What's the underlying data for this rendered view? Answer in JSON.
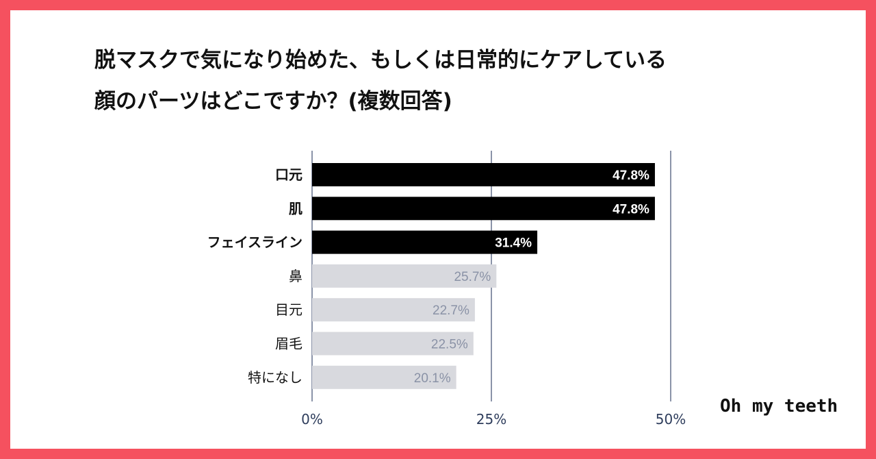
{
  "title_lines": [
    "脱マスクで気になり始めた、もしくは日常的にケアしている",
    "顔のパーツはどこですか？(複数回答)"
  ],
  "brand": "Oh my teeth",
  "colors": {
    "frame": "#f5515f",
    "highlight_bar": "#000000",
    "muted_bar": "#d8d9de",
    "highlight_label": "#ffffff",
    "muted_label": "#8a92a6",
    "gridline": "#8a93a8",
    "tick_label": "#2e3d5c"
  },
  "chart_data": {
    "type": "bar",
    "orientation": "horizontal",
    "categories": [
      "口元",
      "肌",
      "フェイスライン",
      "鼻",
      "目元",
      "眉毛",
      "特になし"
    ],
    "values": [
      47.8,
      47.8,
      31.4,
      25.7,
      22.7,
      22.5,
      20.1
    ],
    "value_labels": [
      "47.8%",
      "47.8%",
      "31.4%",
      "25.7%",
      "22.7%",
      "22.5%",
      "20.1%"
    ],
    "highlighted": [
      true,
      true,
      true,
      false,
      false,
      false,
      false
    ],
    "xlim": [
      0,
      50
    ],
    "xticks": [
      0,
      25,
      50
    ],
    "xtick_labels": [
      "0%",
      "25%",
      "50%"
    ],
    "grid": true,
    "legend": "none"
  }
}
